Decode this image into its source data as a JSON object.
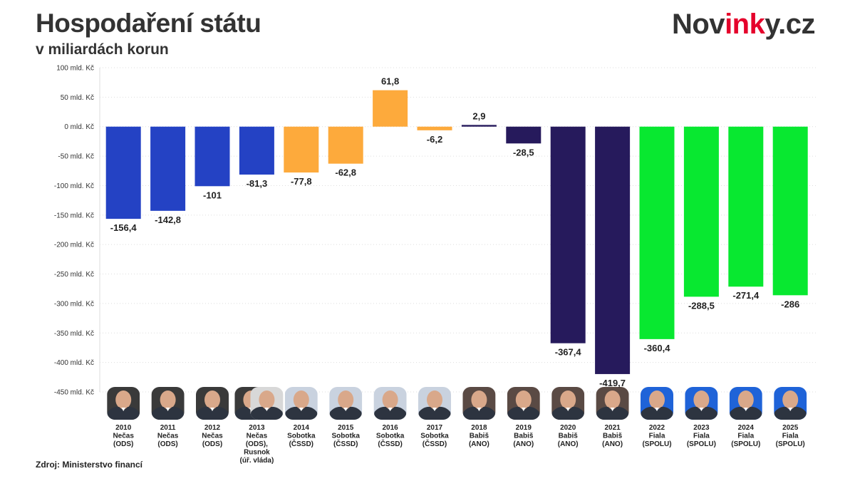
{
  "header": {
    "title": "Hospodaření státu",
    "subtitle": "v miliardách korun",
    "logo_main": "Nov",
    "logo_accent": "ink",
    "logo_tail": "y.cz"
  },
  "footer": {
    "source": "Zdroj: Ministerstvo financí"
  },
  "colors": {
    "ods": "#2442c4",
    "cssd": "#fdaa3c",
    "ano": "#261a5c",
    "spolu": "#08e830",
    "grid": "#dddddd",
    "text": "#222222",
    "photo_bg": "#c9d2df"
  },
  "chart_data": {
    "type": "bar",
    "title": "Hospodaření státu",
    "subtitle": "v miliardách korun",
    "ylim": [
      -450,
      100
    ],
    "yticks": [
      100,
      50,
      0,
      -50,
      -100,
      -150,
      -200,
      -250,
      -300,
      -350,
      -400,
      -450
    ],
    "ytick_labels": [
      "100 mld. Kč",
      "50 mld. Kč",
      "0 mld. Kč",
      "-50 mld. Kč",
      "-100 mld. Kč",
      "-150 mld. Kč",
      "-200 mld. Kč",
      "-250 mld. Kč",
      "-300 mld. Kč",
      "-350 mld. Kč",
      "-400 mld. Kč",
      "-450 mld. Kč"
    ],
    "grid": true,
    "categories": [
      "2010",
      "2011",
      "2012",
      "2013",
      "2014",
      "2015",
      "2016",
      "2017",
      "2018",
      "2019",
      "2020",
      "2021",
      "2022",
      "2023",
      "2024",
      "2025"
    ],
    "values": [
      -156.4,
      -142.8,
      -101,
      -81.3,
      -77.8,
      -62.8,
      61.8,
      -6.2,
      2.9,
      -28.5,
      -367.4,
      -419.7,
      -360.4,
      -288.5,
      -271.4,
      -286
    ],
    "value_labels": [
      "-156,4",
      "-142,8",
      "-101",
      "-81,3",
      "-77,8",
      "-62,8",
      "61,8",
      "-6,2",
      "2,9",
      "-28,5",
      "-367,4",
      "-419,7",
      "-360,4",
      "-288,5",
      "-271,4",
      "-286"
    ],
    "government": [
      "ods",
      "ods",
      "ods",
      "ods",
      "cssd",
      "cssd",
      "cssd",
      "cssd",
      "ano",
      "ano",
      "ano",
      "ano",
      "spolu",
      "spolu",
      "spolu",
      "spolu"
    ],
    "captions": [
      [
        "2010",
        "Nečas",
        "(ODS)"
      ],
      [
        "2011",
        "Nečas",
        "(ODS)"
      ],
      [
        "2012",
        "Nečas",
        "(ODS)"
      ],
      [
        "2013",
        "Nečas",
        "(ODS),",
        "Rusnok",
        "(úř. vláda)"
      ],
      [
        "2014",
        "Sobotka",
        "(ČSSD)"
      ],
      [
        "2015",
        "Sobotka",
        "(ČSSD)"
      ],
      [
        "2016",
        "Sobotka",
        "(ČSSD)"
      ],
      [
        "2017",
        "Sobotka",
        "(ČSSD)"
      ],
      [
        "2018",
        "Babiš",
        "(ANO)"
      ],
      [
        "2019",
        "Babiš",
        "(ANO)"
      ],
      [
        "2020",
        "Babiš",
        "(ANO)"
      ],
      [
        "2021",
        "Babiš",
        "(ANO)"
      ],
      [
        "2022",
        "Fiala",
        "(SPOLU)"
      ],
      [
        "2023",
        "Fiala",
        "(SPOLU)"
      ],
      [
        "2024",
        "Fiala",
        "(SPOLU)"
      ],
      [
        "2025",
        "Fiala",
        "(SPOLU)"
      ]
    ]
  }
}
